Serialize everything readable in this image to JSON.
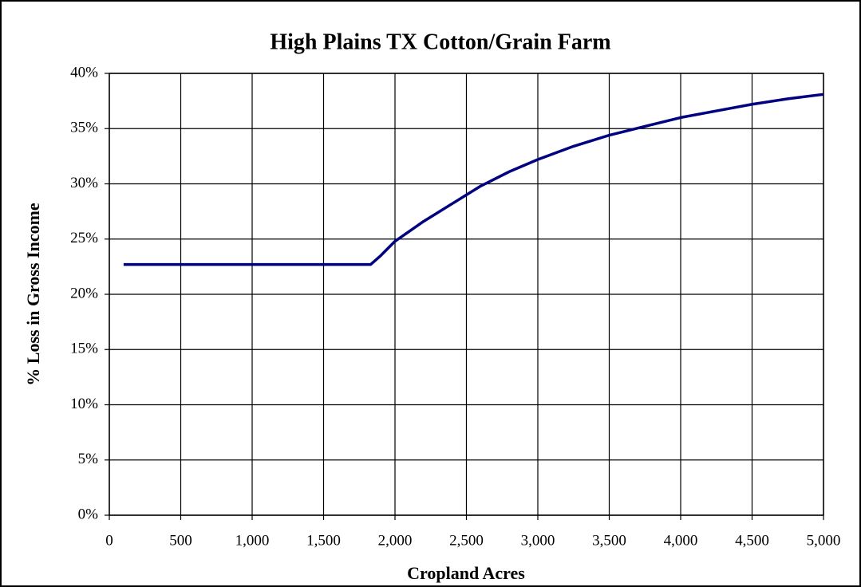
{
  "chart_data": {
    "type": "line",
    "title": "High Plains TX Cotton/Grain Farm",
    "xlabel": "Cropland Acres",
    "ylabel": "% Loss in Gross Income",
    "x": [
      100,
      1830,
      1900,
      2000,
      2200,
      2400,
      2600,
      2800,
      3000,
      3250,
      3500,
      3750,
      4000,
      4250,
      4500,
      4750,
      5000
    ],
    "values": [
      22.7,
      22.7,
      23.5,
      24.8,
      26.6,
      28.2,
      29.8,
      31.1,
      32.2,
      33.4,
      34.4,
      35.2,
      36.0,
      36.6,
      37.2,
      37.7,
      38.1
    ],
    "color": "#000080",
    "xlim": [
      0,
      5000
    ],
    "xticks": [
      0,
      500,
      {
        "value": 1000,
        "label": "1,000"
      },
      {
        "value": 1500,
        "label": "1,500"
      },
      {
        "value": 2000,
        "label": "2,000"
      },
      {
        "value": 2500,
        "label": "2,500"
      },
      {
        "value": 3000,
        "label": "3,000"
      },
      {
        "value": 3500,
        "label": "3,500"
      },
      {
        "value": 4000,
        "label": "4,000"
      },
      {
        "value": 4500,
        "label": "4,500"
      },
      {
        "value": 5000,
        "label": "5,000"
      }
    ],
    "ylim": [
      0,
      40
    ],
    "yticks": [
      {
        "value": 0,
        "label": "0%"
      },
      {
        "value": 5,
        "label": "5%"
      },
      {
        "value": 10,
        "label": "10%"
      },
      {
        "value": 15,
        "label": "15%"
      },
      {
        "value": 20,
        "label": "20%"
      },
      {
        "value": 25,
        "label": "25%"
      },
      {
        "value": 30,
        "label": "30%"
      },
      {
        "value": 35,
        "label": "35%"
      },
      {
        "value": 40,
        "label": "40%"
      }
    ],
    "grid": true
  }
}
